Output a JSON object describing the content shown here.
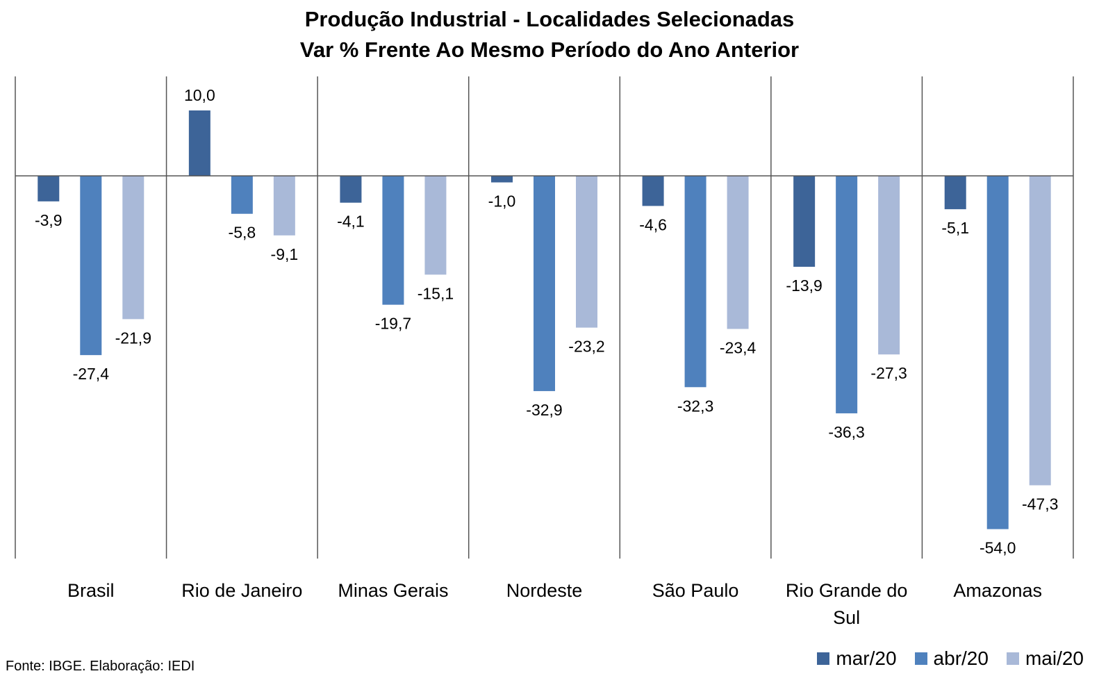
{
  "chart_data": {
    "type": "bar",
    "title": [
      "Produção Industrial - Localidades Selecionadas",
      "Var % Frente Ao Mesmo Período do Ano Anterior"
    ],
    "categories": [
      "Brasil",
      "Rio de Janeiro",
      "Minas Gerais",
      "Nordeste",
      "São Paulo",
      "Rio Grande do Sul",
      "Amazonas"
    ],
    "series": [
      {
        "name": "mar/20",
        "color": "#3d6498",
        "values": [
          -3.9,
          10.0,
          -4.1,
          -1.0,
          -4.6,
          -13.9,
          -5.1
        ]
      },
      {
        "name": "abr/20",
        "color": "#4f81bd",
        "values": [
          -27.4,
          -5.8,
          -19.7,
          -32.9,
          -32.3,
          -36.3,
          -54.0
        ]
      },
      {
        "name": "mai/20",
        "color": "#a9b9d8",
        "values": [
          -21.9,
          -9.1,
          -15.1,
          -23.2,
          -23.4,
          -27.3,
          -47.3
        ]
      }
    ],
    "data_labels": [
      [
        "-3,9",
        "10,0",
        "-4,1",
        "-1,0",
        "-4,6",
        "-13,9",
        "-5,1"
      ],
      [
        "-27,4",
        "-5,8",
        "-19,7",
        "-32,9",
        "-32,3",
        "-36,3",
        "-54,0"
      ],
      [
        "-21,9",
        "-9,1",
        "-15,1",
        "-23,2",
        "-23,4",
        "-27,3",
        "-47,3"
      ]
    ],
    "ylim": [
      -58.5,
      15.2
    ],
    "grid": false,
    "legend": "bottom-right",
    "xlabel": "",
    "ylabel": ""
  },
  "source": "Fonte: IBGE. Elaboração: IEDI"
}
